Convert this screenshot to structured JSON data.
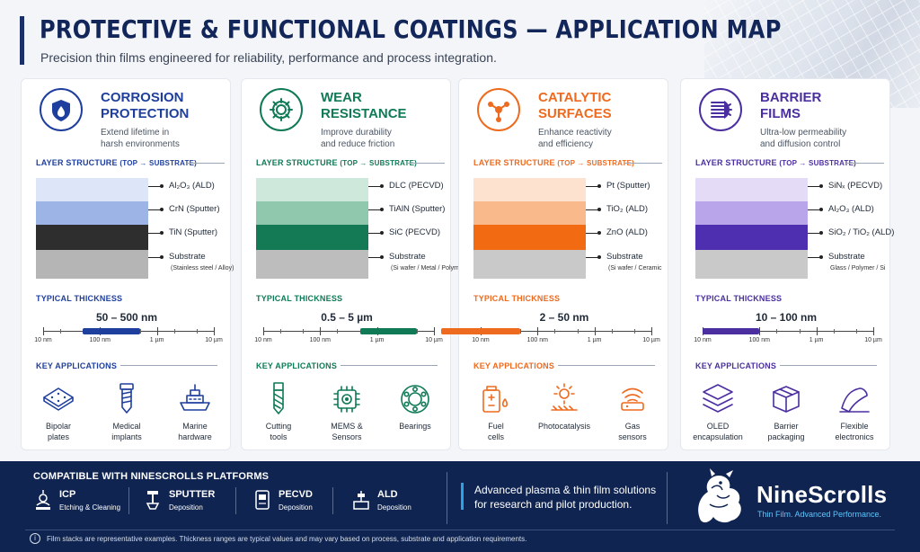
{
  "header": {
    "title": "PROTECTIVE & FUNCTIONAL COATINGS — APPLICATION MAP",
    "subtitle": "Precision thin films engineered for reliability, performance and process integration."
  },
  "labels": {
    "layer_structure": "LAYER STRUCTURE",
    "layer_structure_sub": "(TOP → SUBSTRATE)",
    "typical_thickness": "TYPICAL THICKNESS",
    "key_applications": "KEY APPLICATIONS",
    "scale_ticks": [
      "10 nm",
      "100 nm",
      "1 µm",
      "10 µm"
    ]
  },
  "cards": [
    {
      "title_line1": "CORROSION",
      "title_line2": "PROTECTION",
      "desc_line1": "Extend lifetime in",
      "desc_line2": "harsh environments",
      "accent": "#1f3f9e",
      "icon": "shield-drop-icon",
      "layers": [
        "Al₂O₃ (ALD)",
        "CrN (Sputter)",
        "TiN (Sputter)",
        "Substrate"
      ],
      "substrate_note": "(Stainless steel / Alloy)",
      "layer_colors": [
        "#dde6f8",
        "#9db4e6",
        "#2e2e2e",
        "#b5b5b5"
      ],
      "thickness": "50 – 500 nm",
      "thickness_range_nm": [
        50,
        500
      ],
      "applications": [
        {
          "label_line1": "Bipolar",
          "label_line2": "plates",
          "icon": "bipolar-plate-icon"
        },
        {
          "label_line1": "Medical",
          "label_line2": "implants",
          "icon": "screw-implant-icon"
        },
        {
          "label_line1": "Marine",
          "label_line2": "hardware",
          "icon": "ship-icon"
        }
      ]
    },
    {
      "title_line1": "WEAR",
      "title_line2": "RESISTANCE",
      "desc_line1": "Improve durability",
      "desc_line2": "and reduce friction",
      "accent": "#0f7a55",
      "icon": "gear-icon",
      "layers": [
        "DLC (PECVD)",
        "TiAlN (Sputter)",
        "SiC (PECVD)",
        "Substrate"
      ],
      "substrate_note": "(Si wafer / Metal / Polymer)",
      "layer_colors": [
        "#cfe8dc",
        "#8fc8ad",
        "#147a55",
        "#bdbdbd"
      ],
      "thickness": "0.5 – 5 µm",
      "thickness_range_nm": [
        500,
        5000
      ],
      "applications": [
        {
          "label_line1": "Cutting",
          "label_line2": "tools",
          "icon": "drill-bit-icon"
        },
        {
          "label_line1": "MEMS &",
          "label_line2": "Sensors",
          "icon": "chip-icon"
        },
        {
          "label_line1": "Bearings",
          "label_line2": "",
          "icon": "bearing-icon"
        }
      ]
    },
    {
      "title_line1": "CATALYTIC",
      "title_line2": "SURFACES",
      "desc_line1": "Enhance reactivity",
      "desc_line2": "and efficiency",
      "accent": "#ee6a1f",
      "icon": "molecule-icon",
      "layers": [
        "Pt (Sputter)",
        "TiO₂ (ALD)",
        "ZnO (ALD)",
        "Substrate"
      ],
      "substrate_note": "(Si wafer / Ceramic",
      "layer_colors": [
        "#fde3cf",
        "#f9b98a",
        "#f26b12",
        "#c9c9c9"
      ],
      "thickness": "2 – 50 nm",
      "thickness_range_nm": [
        2,
        50
      ],
      "applications": [
        {
          "label_line1": "Fuel",
          "label_line2": "cells",
          "icon": "fuel-cell-icon"
        },
        {
          "label_line1": "Photocatalysis",
          "label_line2": "",
          "icon": "sun-surface-icon"
        },
        {
          "label_line1": "Gas",
          "label_line2": "sensors",
          "icon": "gas-sensor-icon"
        }
      ]
    },
    {
      "title_line1": "BARRIER",
      "title_line2": "FILMS",
      "desc_line1": "Ultra-low permeability",
      "desc_line2": "and diffusion control",
      "accent": "#4b2fa0",
      "icon": "barrier-icon",
      "layers": [
        "SiNₓ (PECVD)",
        "Al₂O₃ (ALD)",
        "SiO₂ / TiO₂ (ALD)",
        "Substrate"
      ],
      "substrate_note": "Glass / Polymer / Si",
      "layer_colors": [
        "#e4dcf6",
        "#b9a6ea",
        "#4d2fb0",
        "#c9c9c9"
      ],
      "thickness": "10 – 100 nm",
      "thickness_range_nm": [
        10,
        100
      ],
      "applications": [
        {
          "label_line1": "OLED",
          "label_line2": "encapsulation",
          "icon": "layers-icon"
        },
        {
          "label_line1": "Barrier",
          "label_line2": "packaging",
          "icon": "package-icon"
        },
        {
          "label_line1": "Flexible",
          "label_line2": "electronics",
          "icon": "flexible-film-icon"
        }
      ]
    }
  ],
  "footer": {
    "compat_title": "COMPATIBLE WITH NINESCROLLS PLATFORMS",
    "platforms": [
      {
        "name": "ICP",
        "desc": "Etching & Cleaning"
      },
      {
        "name": "SPUTTER",
        "desc": "Deposition"
      },
      {
        "name": "PECVD",
        "desc": "Deposition"
      },
      {
        "name": "ALD",
        "desc": "Deposition"
      }
    ],
    "tagline_line1": "Advanced plasma & thin film solutions",
    "tagline_line2": "for research and pilot production.",
    "brand": "NineScrolls",
    "brand_tagline": "Thin Film. Advanced Performance.",
    "note": "Film stacks are representative examples. Thickness ranges are typical values and may vary based on process, substrate and application requirements."
  }
}
